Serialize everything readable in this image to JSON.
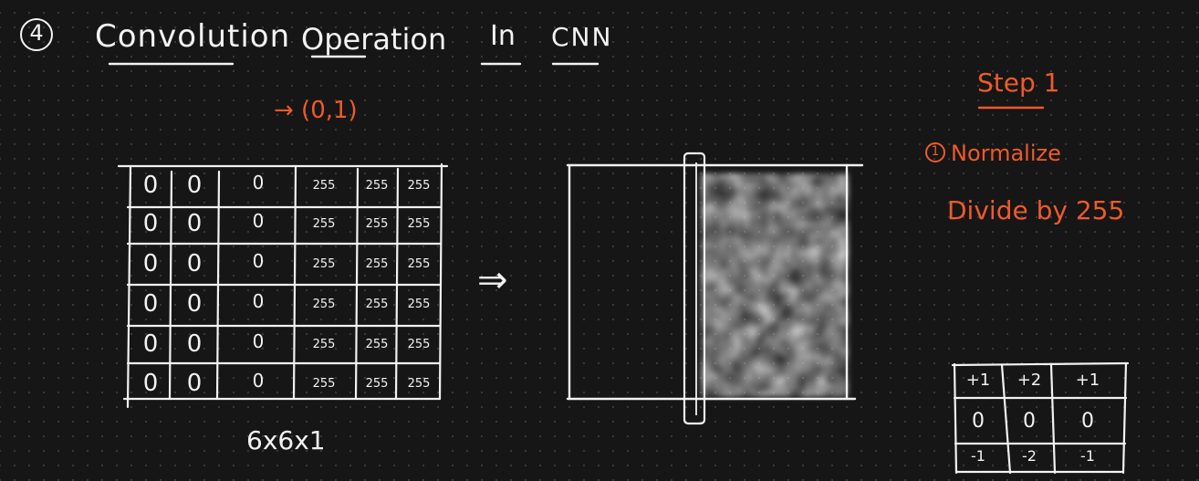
{
  "title": {
    "number": "4",
    "part1": "Convolution",
    "part2": "Operation",
    "part3": "In",
    "part4": "CNN"
  },
  "range_note": "→ (0,1)",
  "arrow": "⇒",
  "dimension_label": "6x6x1",
  "pixel_matrix": [
    [
      "0",
      "0",
      "0",
      "255",
      "255",
      "255"
    ],
    [
      "0",
      "0",
      "0",
      "255",
      "255",
      "255"
    ],
    [
      "0",
      "0",
      "0",
      "255",
      "255",
      "255"
    ],
    [
      "0",
      "0",
      "0",
      "255",
      "255",
      "255"
    ],
    [
      "0",
      "0",
      "0",
      "255",
      "255",
      "255"
    ],
    [
      "0",
      "0",
      "0",
      "255",
      "255",
      "255"
    ]
  ],
  "step": {
    "heading": "Step 1",
    "circle_number": "1",
    "normalize": "Normalize",
    "divide": "Divide by 255"
  },
  "filter": [
    [
      "+1",
      "+2",
      "+1"
    ],
    [
      "0",
      "0",
      "0"
    ],
    [
      "-1",
      "-2",
      "-1"
    ]
  ],
  "colors": {
    "background": "#161616",
    "ink": "#f2f2f2",
    "accent": "#ef5a2a"
  }
}
